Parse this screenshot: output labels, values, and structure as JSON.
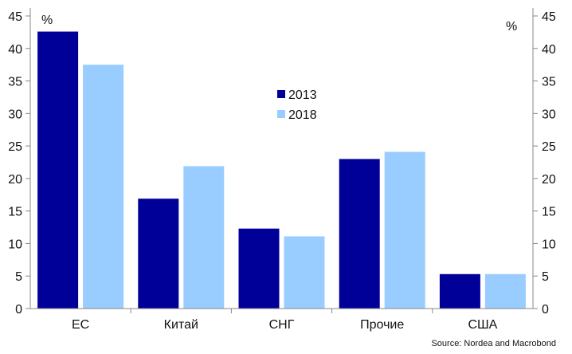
{
  "chart_data": {
    "type": "bar",
    "categories": [
      "ЕС",
      "Китай",
      "СНГ",
      "Прочие",
      "США"
    ],
    "series": [
      {
        "name": "2013",
        "color": "#000099",
        "values": [
          42.6,
          16.9,
          12.3,
          23.0,
          5.3
        ]
      },
      {
        "name": "2018",
        "color": "#99ccff",
        "values": [
          37.5,
          21.9,
          11.1,
          24.1,
          5.3
        ]
      }
    ],
    "ylim": [
      0,
      45
    ],
    "yticks": [
      0,
      5,
      10,
      15,
      20,
      25,
      30,
      35,
      40,
      45
    ],
    "left_unit": "%",
    "right_unit": "%",
    "legend_position": "center-top",
    "grid": false,
    "source": "Source: Nordea and Macrobond"
  }
}
